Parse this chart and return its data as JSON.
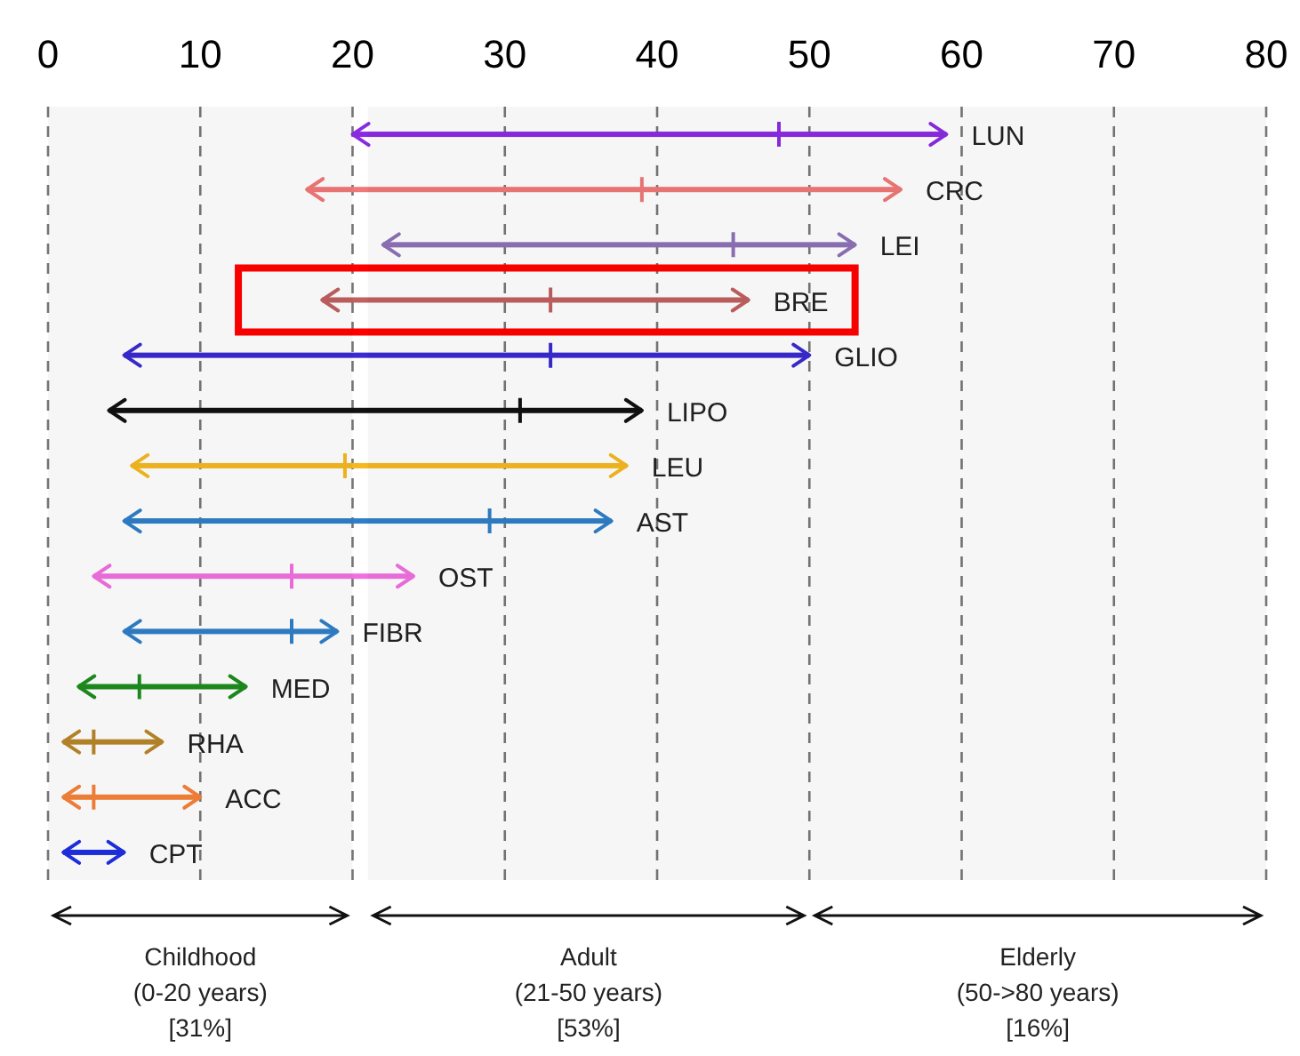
{
  "chart_data": {
    "type": "bar",
    "orientation": "horizontal",
    "categories": [
      "LUN",
      "CRC",
      "LEI",
      "BRE",
      "GLIO",
      "LIPO",
      "LEU",
      "AST",
      "OST",
      "FIBR",
      "MED",
      "RHA",
      "ACC",
      "CPT"
    ],
    "base": [
      20,
      17,
      22,
      18,
      5,
      4,
      5.5,
      5,
      3,
      5,
      2,
      1,
      1,
      1
    ],
    "values": [
      39,
      39,
      31,
      28,
      45,
      35,
      32.5,
      32,
      21,
      14,
      11,
      6.5,
      9,
      4
    ],
    "colors": [
      "#8a2be2",
      "#f07878",
      "#8e72b8",
      "#c06060",
      "#3a2bd0",
      "#111111",
      "#f5b820",
      "#2f7fc8",
      "#f070e0",
      "#2f7fc8",
      "#1e8c1e",
      "#b8862a",
      "#f5823a",
      "#1f2fe0"
    ],
    "series": [
      {
        "type": "scatter",
        "marker": "cross",
        "colors": [
          "#8a2be2",
          "#f07878",
          "#8e72b8",
          "#c06060",
          "#3a2bd0",
          "#111111",
          "#f5b820",
          "#2f7fc8",
          "#f070e0",
          "#2f7fc8",
          "#1e8c1e",
          "#b8862a",
          "#f5823a",
          "#1f2fe0"
        ],
        "values": [
          48,
          39,
          45,
          33,
          33,
          31,
          19.5,
          29,
          16,
          16,
          6,
          3,
          3,
          null
        ]
      }
    ],
    "xlim": [
      0,
      80
    ],
    "xticks": [
      0,
      10,
      20,
      30,
      40,
      50,
      60,
      70,
      80
    ],
    "grid": "x",
    "bands": [
      {
        "axis": "x",
        "from": 0,
        "to": 20,
        "label": "Childhood\n(0-20 years)\n[31%]"
      },
      {
        "axis": "x",
        "from": 21,
        "to": 50,
        "label": "Adult\n(21-50 years)\n[53%]"
      },
      {
        "axis": "x",
        "from": 50,
        "to": 80,
        "label": "Elderly\n(50->80 years)\n[16%]"
      }
    ]
  }
}
